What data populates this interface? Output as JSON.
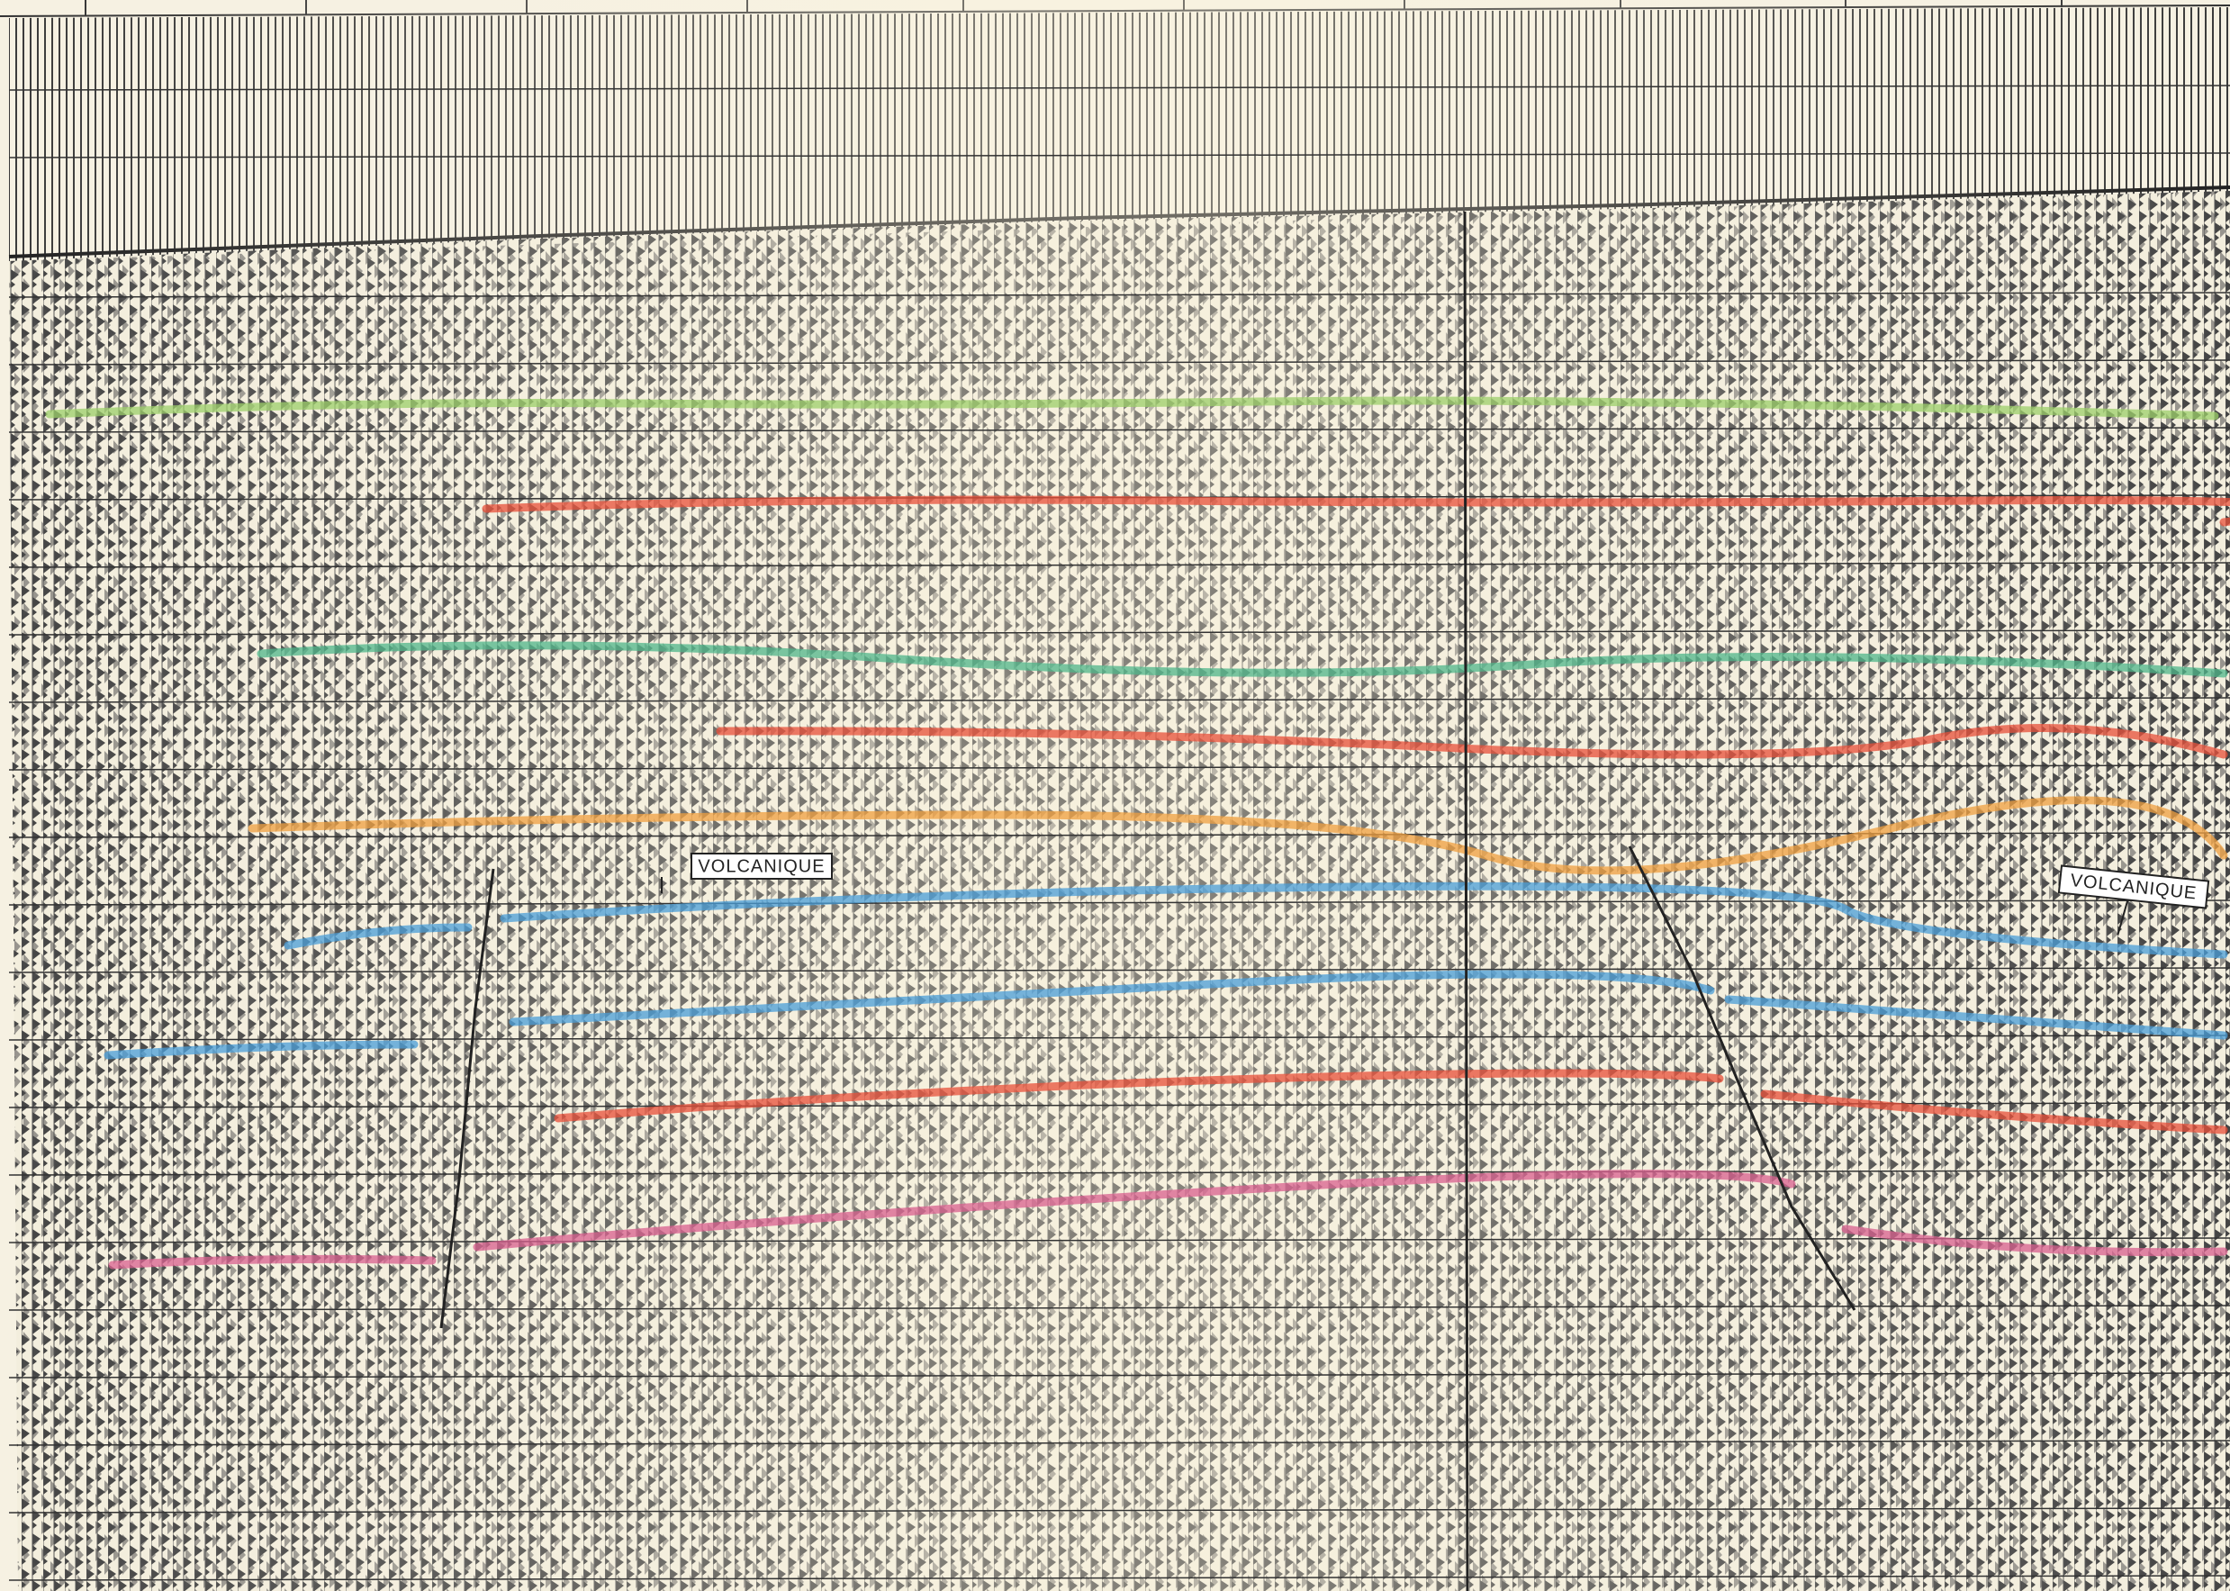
{
  "annotations": [
    "VOLCANIQUE",
    "VOLCANIQUE"
  ]
}
